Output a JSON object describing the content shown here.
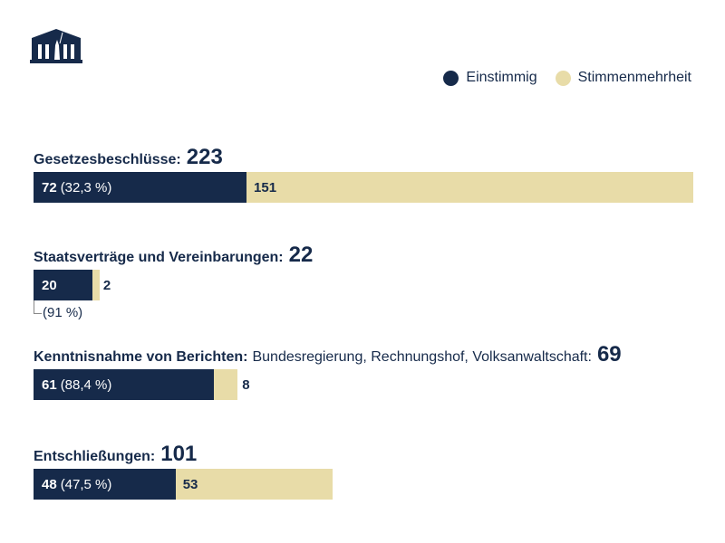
{
  "legend": [
    {
      "label": "Einstimmig",
      "color": "#162a4a"
    },
    {
      "label": "Stimmenmehrheit",
      "color": "#e8dca8"
    }
  ],
  "chart_data": {
    "type": "bar",
    "stacked": true,
    "orientation": "horizontal",
    "series_names": [
      "Einstimmig",
      "Stimmenmehrheit"
    ],
    "groups": [
      {
        "title": "Gesetzesbeschlüsse:",
        "subtitle": "",
        "total": "223",
        "einstimmig": 72,
        "einstimmig_pct": "(32,3 %)",
        "mehrheit": 151,
        "mehrheit_label": "151"
      },
      {
        "title": "Staatsverträge und Vereinbarungen:",
        "subtitle": "",
        "total": "22",
        "einstimmig": 20,
        "einstimmig_pct": "(91 %)",
        "mehrheit": 2,
        "mehrheit_label": "2"
      },
      {
        "title": "Kenntnisnahme von Berichten:",
        "subtitle": "Bundesregierung, Rechnungshof, Volksanwaltschaft:",
        "total": "69",
        "einstimmig": 61,
        "einstimmig_pct": "(88,4 %)",
        "mehrheit": 8,
        "mehrheit_label": "8"
      },
      {
        "title": "Entschließungen:",
        "subtitle": "",
        "total": "101",
        "einstimmig": 48,
        "einstimmig_pct": "(47,5 %)",
        "mehrheit": 53,
        "mehrheit_label": "53"
      }
    ],
    "scale_max": 223
  }
}
